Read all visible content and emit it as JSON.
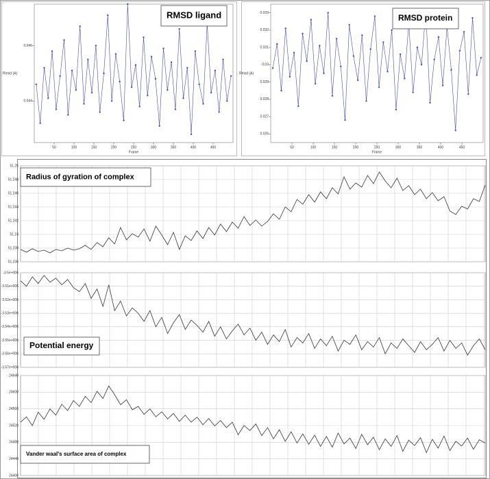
{
  "chart_data": [
    {
      "type": "line",
      "title": "RMSD ligand",
      "x_label": "Frame",
      "y_label": "Rmsd (A)",
      "color": "#4a4aa8",
      "markers": true,
      "x": [
        5,
        15,
        25,
        35,
        45,
        55,
        65,
        75,
        85,
        95,
        105,
        115,
        125,
        135,
        145,
        155,
        165,
        175,
        185,
        195,
        205,
        215,
        225,
        235,
        245,
        255,
        265,
        275,
        285,
        295,
        305,
        315,
        325,
        335,
        345,
        355,
        365,
        375,
        385,
        395,
        405,
        415,
        425,
        435,
        445,
        455,
        465,
        475,
        485,
        495
      ],
      "values": [
        0.0446,
        0.0432,
        0.0452,
        0.0441,
        0.0458,
        0.0437,
        0.0449,
        0.0462,
        0.0435,
        0.0451,
        0.0444,
        0.0467,
        0.0439,
        0.0455,
        0.0443,
        0.046,
        0.0436,
        0.045,
        0.0471,
        0.044,
        0.0457,
        0.0447,
        0.0433,
        0.0475,
        0.0445,
        0.0453,
        0.0438,
        0.0463,
        0.0442,
        0.0456,
        0.0448,
        0.0431,
        0.0459,
        0.0444,
        0.0454,
        0.0437,
        0.0466,
        0.0441,
        0.0452,
        0.0428,
        0.0458,
        0.0446,
        0.0439,
        0.0468,
        0.0443,
        0.0451,
        0.0436,
        0.0455,
        0.044,
        0.0449
      ],
      "xlim": [
        0,
        500
      ],
      "xticks": [
        50,
        100,
        150,
        200,
        250,
        300,
        350,
        400,
        450
      ],
      "ylim": [
        0.0425,
        0.0475
      ],
      "yticks": [
        0.044,
        0.046
      ],
      "grid": false
    },
    {
      "type": "line",
      "title": "RMSD protein",
      "x_label": "Frame",
      "y_label": "Rmsd (A)",
      "color": "#4a4aa8",
      "markers": true,
      "x": [
        5,
        15,
        25,
        35,
        45,
        55,
        65,
        75,
        85,
        95,
        105,
        115,
        125,
        135,
        145,
        155,
        165,
        175,
        185,
        195,
        205,
        215,
        225,
        235,
        245,
        255,
        265,
        275,
        285,
        295,
        305,
        315,
        325,
        335,
        345,
        355,
        365,
        375,
        385,
        395,
        405,
        415,
        425,
        435,
        445,
        455,
        465,
        475,
        485,
        495
      ],
      "values": [
        0.0298,
        0.0312,
        0.0285,
        0.0321,
        0.0293,
        0.0307,
        0.0276,
        0.0318,
        0.0302,
        0.0326,
        0.0289,
        0.0311,
        0.0295,
        0.033,
        0.0282,
        0.0315,
        0.0299,
        0.0268,
        0.0323,
        0.0305,
        0.0291,
        0.0317,
        0.0279,
        0.0309,
        0.0328,
        0.0287,
        0.0313,
        0.0296,
        0.032,
        0.0274,
        0.0306,
        0.0292,
        0.0324,
        0.0284,
        0.031,
        0.03,
        0.0331,
        0.0278,
        0.0303,
        0.0316,
        0.0288,
        0.0322,
        0.0297,
        0.0262,
        0.0308,
        0.0319,
        0.0283,
        0.0327,
        0.0294,
        0.0304
      ],
      "xlim": [
        0,
        500
      ],
      "xticks": [
        50,
        100,
        150,
        200,
        250,
        300,
        350,
        400,
        450
      ],
      "ylim": [
        0.0255,
        0.0335
      ],
      "yticks": [
        0.026,
        0.027,
        0.028,
        0.029,
        0.03,
        0.031,
        0.032,
        0.033
      ],
      "grid": false
    },
    {
      "type": "line",
      "title": "Radius of gyration of complex",
      "color": "#333333",
      "markers": false,
      "values": [
        51.2378,
        51.2374,
        51.2379,
        51.2375,
        51.2377,
        51.2373,
        51.2378,
        51.2376,
        51.238,
        51.2377,
        51.2379,
        51.2384,
        51.2378,
        51.2388,
        51.2382,
        51.2395,
        51.2386,
        51.241,
        51.2392,
        51.2401,
        51.2396,
        51.2408,
        51.239,
        51.2412,
        51.2399,
        51.2385,
        51.2403,
        51.2378,
        51.2398,
        51.2391,
        51.2405,
        51.2394,
        51.241,
        51.2399,
        51.2415,
        51.2404,
        51.2418,
        51.2409,
        51.2426,
        51.2413,
        51.2421,
        51.2412,
        51.2419,
        51.243,
        51.2422,
        51.244,
        51.2433,
        51.2451,
        51.2444,
        51.2458,
        51.2447,
        51.2462,
        51.2452,
        51.2468,
        51.2459,
        51.2484,
        51.2466,
        51.2475,
        51.2469,
        51.2486,
        51.2474,
        51.2491,
        51.2478,
        51.2468,
        51.2482,
        51.2464,
        51.2471,
        51.2458,
        51.2466,
        51.2452,
        51.2461,
        51.2449,
        51.2455,
        51.2434,
        51.2429,
        51.2441,
        51.2437,
        51.2452,
        51.2448,
        51.2472
      ],
      "ylim": [
        51.236,
        51.25
      ],
      "yticks": [
        51.236,
        51.238,
        51.24,
        51.242,
        51.244,
        51.246,
        51.248,
        51.25
      ],
      "grid": true
    },
    {
      "type": "line",
      "title": "Potential energy",
      "color": "#333333",
      "markers": false,
      "values": [
        -3506000,
        -3510000,
        -3503000,
        -3508000,
        -3502000,
        -3507000,
        -3504000,
        -3509000,
        -3505000,
        -3511000,
        -3514000,
        -3508000,
        -3519000,
        -3512000,
        -3525000,
        -3509000,
        -3528000,
        -3521000,
        -3532000,
        -3526000,
        -3530000,
        -3536000,
        -3528000,
        -3540000,
        -3533000,
        -3545000,
        -3537000,
        -3531000,
        -3542000,
        -3535000,
        -3539000,
        -3544000,
        -3536000,
        -3547000,
        -3540000,
        -3549000,
        -3543000,
        -3538000,
        -3546000,
        -3541000,
        -3550000,
        -3544000,
        -3553000,
        -3546000,
        -3551000,
        -3542000,
        -3555000,
        -3548000,
        -3552000,
        -3545000,
        -3556000,
        -3549000,
        -3554000,
        -3547000,
        -3558000,
        -3550000,
        -3553000,
        -3546000,
        -3557000,
        -3551000,
        -3555000,
        -3548000,
        -3560000,
        -3552000,
        -3556000,
        -3549000,
        -3554000,
        -3559000,
        -3551000,
        -3557000,
        -3553000,
        -3548000,
        -3558000,
        -3550000,
        -3556000,
        -3552000,
        -3561000,
        -3554000,
        -3549000,
        -3557000
      ],
      "ylim": [
        -3570000,
        -3500000
      ],
      "yticks": [
        {
          "value": -3570000,
          "label": "-3.57e+006"
        },
        {
          "value": -3560000,
          "label": "-3.56e+006"
        },
        {
          "value": -3550000,
          "label": "-3.55e+006"
        },
        {
          "value": -3540000,
          "label": "-3.54e+006"
        },
        {
          "value": -3530000,
          "label": "-3.53e+006"
        },
        {
          "value": -3520000,
          "label": "-3.52e+006"
        },
        {
          "value": -3510000,
          "label": "-3.51e+006"
        },
        {
          "value": -3500000,
          "label": "-3.5e+006"
        }
      ],
      "grid": true
    },
    {
      "type": "line",
      "title": "Vander waal's surface area of complex",
      "color": "#333333",
      "markers": false,
      "values": [
        24528,
        24541,
        24520,
        24552,
        24535,
        24560,
        24545,
        24571,
        24556,
        24580,
        24566,
        24590,
        24575,
        24602,
        24585,
        24615,
        24594,
        24570,
        24582,
        24558,
        24566,
        24547,
        24560,
        24541,
        24553,
        24536,
        24549,
        24530,
        24545,
        24528,
        24540,
        24522,
        24537,
        24519,
        24532,
        24515,
        24528,
        24498,
        24520,
        24508,
        24524,
        24496,
        24515,
        24488,
        24510,
        24482,
        24505,
        24478,
        24500,
        24475,
        24497,
        24470,
        24494,
        24468,
        24502,
        24476,
        24490,
        24465,
        24499,
        24474,
        24492,
        24462,
        24488,
        24470,
        24496,
        24458,
        24485,
        24472,
        24491,
        24455,
        24487,
        24466,
        24495,
        24460,
        24482,
        24471,
        24490,
        24463,
        24486,
        24478
      ],
      "ylim": [
        24400,
        24640
      ],
      "yticks": [
        24400,
        24440,
        24480,
        24520,
        24560,
        24600,
        24640
      ],
      "grid": true
    }
  ]
}
